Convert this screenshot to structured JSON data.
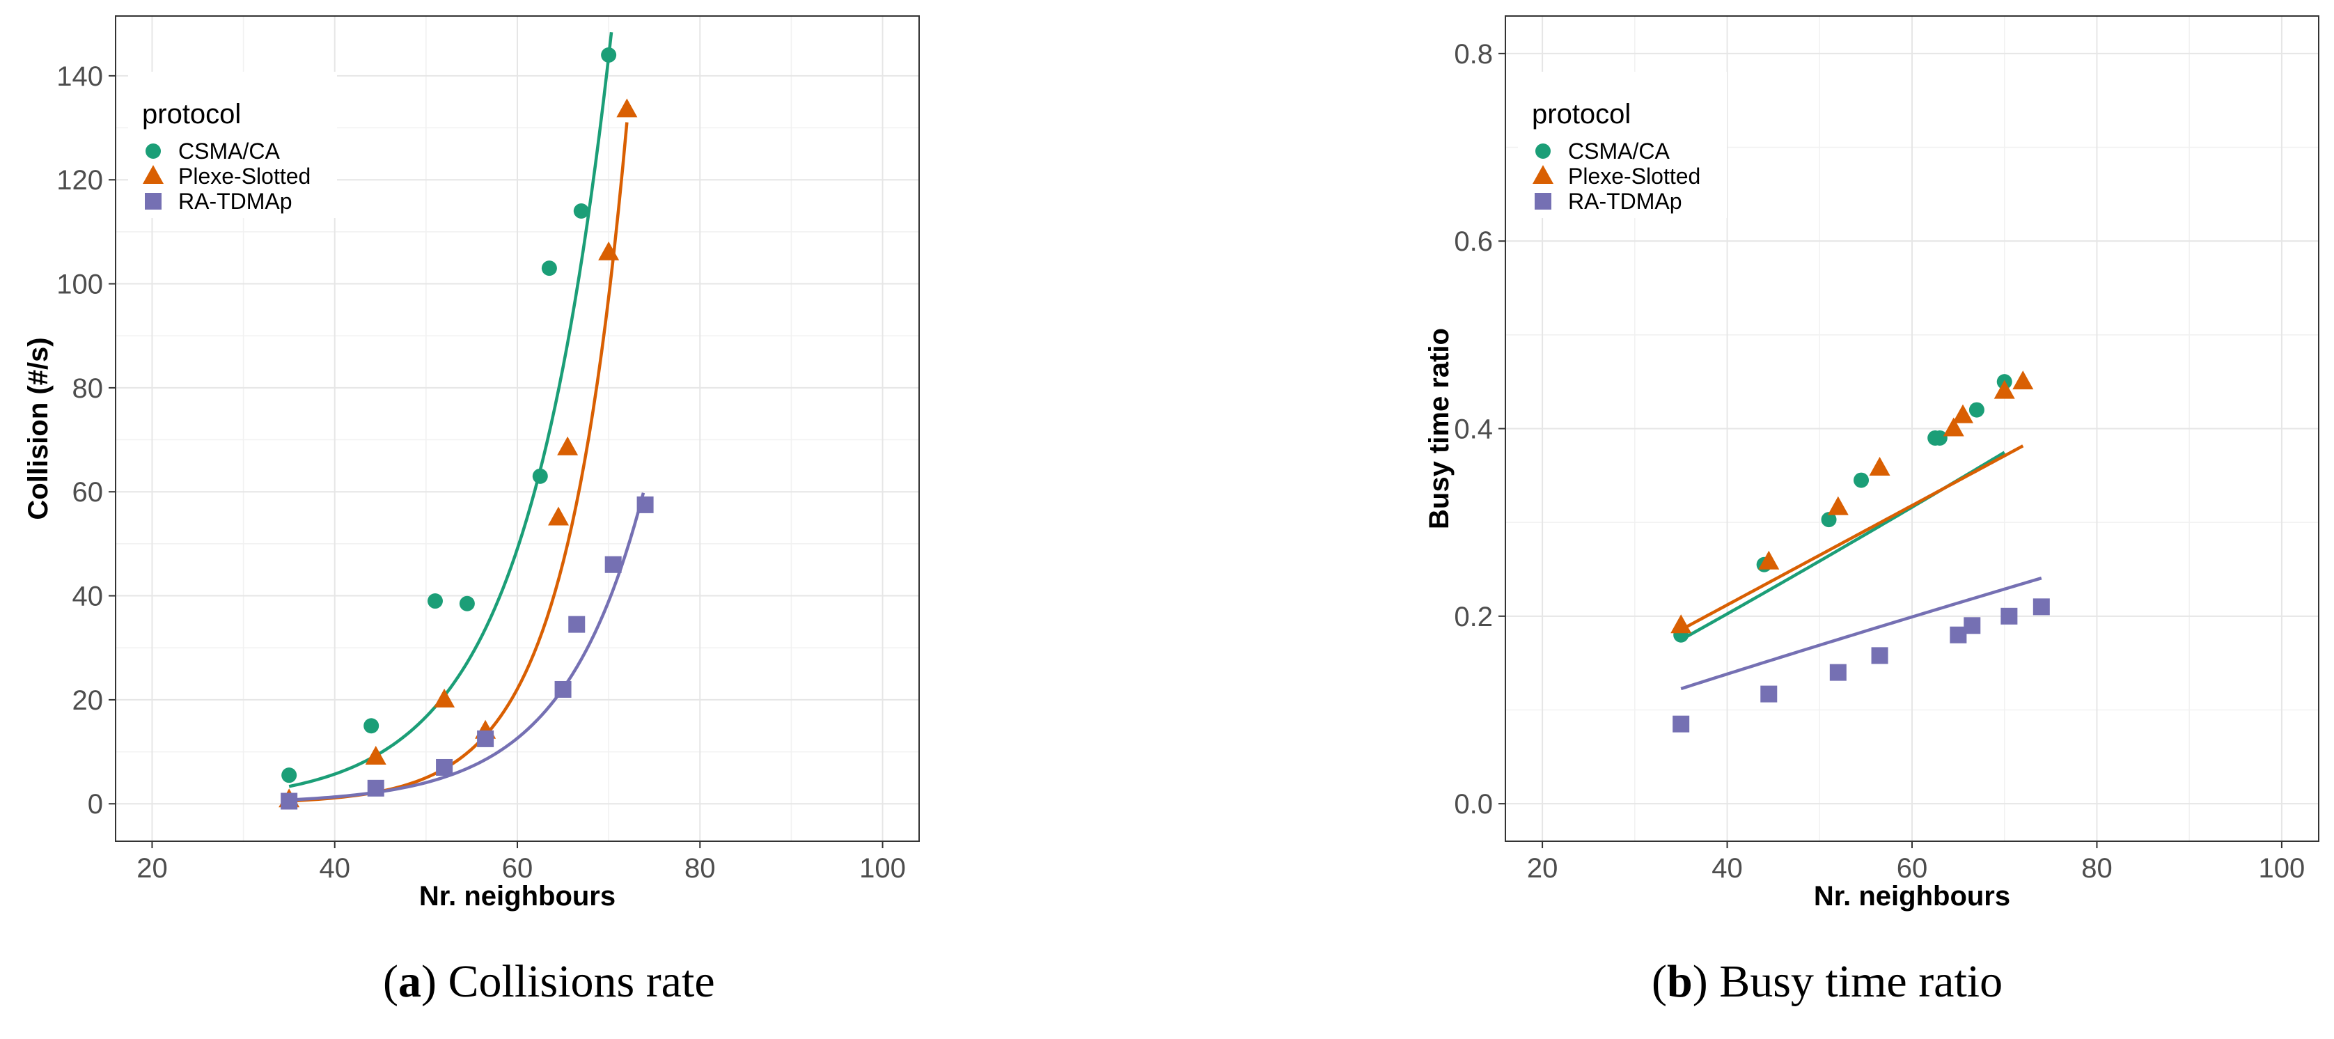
{
  "chart_data": [
    {
      "type": "scatter",
      "panel_label": "a",
      "caption": "Collisions rate",
      "xlabel": "Nr. neighbours",
      "ylabel": "Collision (#/s)",
      "xlim": [
        16,
        104
      ],
      "ylim": [
        -7.2,
        151.5
      ],
      "xticks": [
        20,
        40,
        60,
        80,
        100
      ],
      "yticks": [
        0,
        20,
        40,
        60,
        80,
        100,
        120,
        140
      ],
      "x_tick_labels": [
        "20",
        "40",
        "60",
        "80",
        "100"
      ],
      "y_tick_labels": [
        "0",
        "20",
        "40",
        "60",
        "80",
        "100",
        "120",
        "140"
      ],
      "grid": true,
      "legend": {
        "title": "protocol",
        "position": "top-left",
        "entries": [
          "CSMA/CA",
          "Plexe-Slotted",
          "RA-TDMAp"
        ]
      },
      "series": [
        {
          "name": "CSMA/CA",
          "marker": "circle",
          "color": "#1b9e77",
          "points": [
            [
              35,
              5.5
            ],
            [
              44,
              15
            ],
            [
              51,
              39
            ],
            [
              54.5,
              38.5
            ],
            [
              62.5,
              63
            ],
            [
              63.5,
              103
            ],
            [
              67,
              114
            ],
            [
              70,
              144
            ]
          ],
          "fit": {
            "model": "exponential",
            "a": 0.0775,
            "b": 0.1075,
            "x0": 35,
            "x1": 70.3
          }
        },
        {
          "name": "Plexe-Slotted",
          "marker": "triangle",
          "color": "#d95f02",
          "points": [
            [
              35,
              0.8
            ],
            [
              44.5,
              9
            ],
            [
              52,
              20
            ],
            [
              56.5,
              14
            ],
            [
              64.5,
              55
            ],
            [
              65.5,
              68.5
            ],
            [
              70,
              106
            ],
            [
              72,
              133.5
            ]
          ],
          "fit": {
            "model": "exponential",
            "a": 0.003,
            "b": 0.1484,
            "x0": 35,
            "x1": 72
          }
        },
        {
          "name": "RA-TDMAp",
          "marker": "square",
          "color": "#7570b3",
          "points": [
            [
              35,
              0.5
            ],
            [
              44.5,
              3
            ],
            [
              52,
              7
            ],
            [
              56.5,
              12.5
            ],
            [
              65,
              22
            ],
            [
              66.5,
              34.5
            ],
            [
              70.5,
              46
            ],
            [
              74,
              57.5
            ]
          ],
          "fit": {
            "model": "exponential",
            "a": 0.0145,
            "b": 0.1128,
            "x0": 35,
            "x1": 73.8
          }
        }
      ]
    },
    {
      "type": "scatter",
      "panel_label": "b",
      "caption": "Busy time ratio",
      "xlabel": "Nr. neighbours",
      "ylabel": "Busy time ratio",
      "xlim": [
        16,
        104
      ],
      "ylim": [
        -0.04,
        0.84
      ],
      "xticks": [
        20,
        40,
        60,
        80,
        100
      ],
      "yticks": [
        0,
        0.2,
        0.4,
        0.6,
        0.8
      ],
      "x_tick_labels": [
        "20",
        "40",
        "60",
        "80",
        "100"
      ],
      "y_tick_labels": [
        "0.0",
        "0.2",
        "0.4",
        "0.6",
        "0.8"
      ],
      "grid": true,
      "legend": {
        "title": "protocol",
        "position": "top-left",
        "entries": [
          "CSMA/CA",
          "Plexe-Slotted",
          "RA-TDMAp"
        ]
      },
      "series": [
        {
          "name": "CSMA/CA",
          "marker": "circle",
          "color": "#1b9e77",
          "points": [
            [
              35,
              0.18
            ],
            [
              44,
              0.255
            ],
            [
              51,
              0.303
            ],
            [
              54.5,
              0.345
            ],
            [
              62.5,
              0.39
            ],
            [
              63,
              0.39
            ],
            [
              67,
              0.42
            ],
            [
              70,
              0.45
            ]
          ],
          "fit": {
            "model": "power",
            "a": 0.0035,
            "b": 1.1,
            "x0": 35,
            "x1": 70
          }
        },
        {
          "name": "Plexe-Slotted",
          "marker": "triangle",
          "color": "#d95f02",
          "points": [
            [
              35,
              0.19
            ],
            [
              44.5,
              0.258
            ],
            [
              52,
              0.316
            ],
            [
              56.5,
              0.358
            ],
            [
              64.5,
              0.4
            ],
            [
              65.5,
              0.414
            ],
            [
              70,
              0.44
            ],
            [
              72,
              0.45
            ]
          ],
          "fit": {
            "model": "power",
            "a": 0.0053,
            "b": 1.0,
            "x0": 35,
            "x1": 72
          }
        },
        {
          "name": "RA-TDMAp",
          "marker": "square",
          "color": "#7570b3",
          "points": [
            [
              35,
              0.085
            ],
            [
              44.5,
              0.117
            ],
            [
              52,
              0.14
            ],
            [
              56.5,
              0.158
            ],
            [
              65,
              0.18
            ],
            [
              66.5,
              0.19
            ],
            [
              70.5,
              0.2
            ],
            [
              74,
              0.21
            ]
          ],
          "fit": {
            "model": "power",
            "a": 0.005,
            "b": 0.9,
            "x0": 35,
            "x1": 74
          }
        }
      ]
    }
  ]
}
